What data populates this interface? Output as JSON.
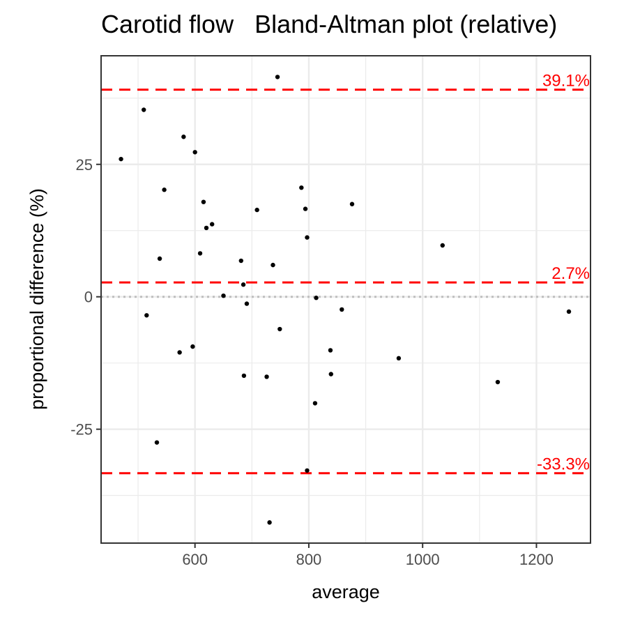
{
  "chart_data": {
    "type": "scatter",
    "title": "Carotid flow   Bland-Altman plot (relative)",
    "xlabel": "average",
    "ylabel": "proportional difference (%)",
    "xlim": [
      435,
      1295
    ],
    "ylim": [
      -46.5,
      45.5
    ],
    "x_ticks": [
      600,
      800,
      1000,
      1200
    ],
    "x_tick_labels": [
      "600",
      "800",
      "1000",
      "1200"
    ],
    "y_ticks": [
      -25,
      0,
      25
    ],
    "y_tick_labels": [
      "-25",
      "0",
      "25"
    ],
    "x_minor_ticks": [
      500,
      700,
      900,
      1100
    ],
    "y_minor_ticks": [
      -37.5,
      -12.5,
      12.5,
      37.5
    ],
    "grid": true,
    "colors": {
      "points": "#000000",
      "ref_lines": "#ff0000",
      "zero_line": "#bebebe"
    },
    "reference_lines": [
      {
        "y": 39.1,
        "label": "39.1%"
      },
      {
        "y": 2.7,
        "label": "2.7%"
      },
      {
        "y": -33.3,
        "label": "-33.3%"
      }
    ],
    "zero_line": 0,
    "points": [
      {
        "x": 470,
        "y": 26
      },
      {
        "x": 510,
        "y": 35.3
      },
      {
        "x": 515,
        "y": -3.5
      },
      {
        "x": 533,
        "y": -27.5
      },
      {
        "x": 538,
        "y": 7.2
      },
      {
        "x": 546,
        "y": 20.2
      },
      {
        "x": 573,
        "y": -10.5
      },
      {
        "x": 580,
        "y": 30.2
      },
      {
        "x": 596,
        "y": -9.4
      },
      {
        "x": 600,
        "y": 27.3
      },
      {
        "x": 609,
        "y": 8.2
      },
      {
        "x": 615,
        "y": 17.9
      },
      {
        "x": 620,
        "y": 13
      },
      {
        "x": 630,
        "y": 13.7
      },
      {
        "x": 650,
        "y": 0.2
      },
      {
        "x": 681,
        "y": 6.8
      },
      {
        "x": 685,
        "y": 2.3
      },
      {
        "x": 686,
        "y": -14.9
      },
      {
        "x": 691,
        "y": -1.3
      },
      {
        "x": 709,
        "y": 16.4
      },
      {
        "x": 726,
        "y": -15.1
      },
      {
        "x": 731,
        "y": -42.6
      },
      {
        "x": 737,
        "y": 6
      },
      {
        "x": 745,
        "y": 41.5
      },
      {
        "x": 749,
        "y": -6.1
      },
      {
        "x": 787,
        "y": 20.6
      },
      {
        "x": 794,
        "y": 16.6
      },
      {
        "x": 797,
        "y": 11.2
      },
      {
        "x": 797,
        "y": -32.8
      },
      {
        "x": 811,
        "y": -20.1
      },
      {
        "x": 813,
        "y": -0.2
      },
      {
        "x": 838,
        "y": -10.1
      },
      {
        "x": 839,
        "y": -14.6
      },
      {
        "x": 858,
        "y": -2.4
      },
      {
        "x": 876,
        "y": 17.5
      },
      {
        "x": 958,
        "y": -11.6
      },
      {
        "x": 1035,
        "y": 9.7
      },
      {
        "x": 1132,
        "y": -16.1
      },
      {
        "x": 1257,
        "y": -2.8
      }
    ]
  }
}
